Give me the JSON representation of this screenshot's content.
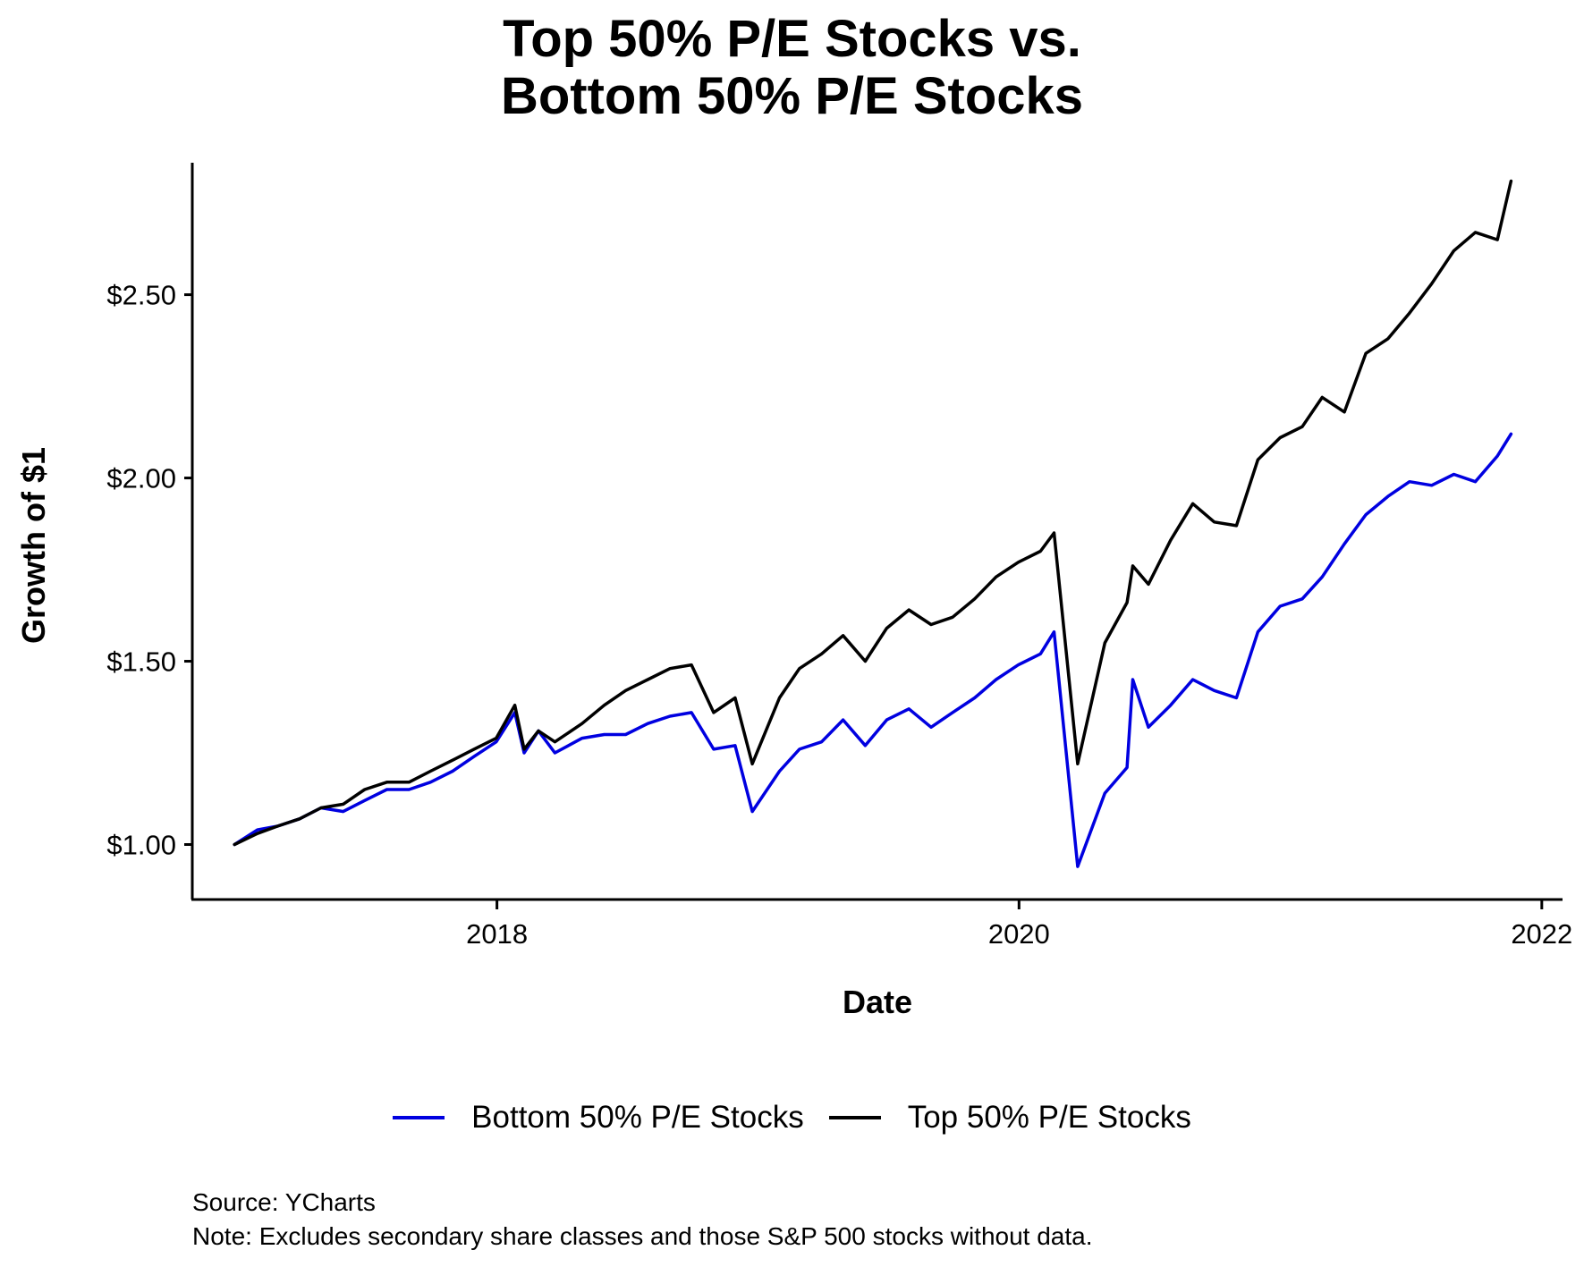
{
  "chart_data": {
    "type": "line",
    "title_lines": [
      "Top 50% P/E Stocks vs.",
      "Bottom 50% P/E Stocks"
    ],
    "xlabel": "Date",
    "ylabel": "Growth of $1",
    "x_ticks": [
      "2018",
      "2020",
      "2022"
    ],
    "y_ticks": [
      "$1.00",
      "$1.50",
      "$2.00",
      "$2.50"
    ],
    "xlim": [
      "2016-11-01",
      "2022-01-30"
    ],
    "ylim": [
      0.85,
      2.86
    ],
    "grid": false,
    "legend_position": "bottom",
    "series": [
      {
        "name": "Bottom 50% P/E Stocks",
        "color": "#0000e0",
        "points": [
          [
            "2016-12-30",
            1.0
          ],
          [
            "2017-01-31",
            1.04
          ],
          [
            "2017-02-28",
            1.05
          ],
          [
            "2017-03-31",
            1.07
          ],
          [
            "2017-04-30",
            1.1
          ],
          [
            "2017-05-31",
            1.09
          ],
          [
            "2017-06-30",
            1.12
          ],
          [
            "2017-07-31",
            1.15
          ],
          [
            "2017-08-31",
            1.15
          ],
          [
            "2017-09-30",
            1.17
          ],
          [
            "2017-10-31",
            1.2
          ],
          [
            "2017-11-30",
            1.24
          ],
          [
            "2017-12-31",
            1.28
          ],
          [
            "2018-01-26",
            1.36
          ],
          [
            "2018-02-08",
            1.25
          ],
          [
            "2018-02-28",
            1.31
          ],
          [
            "2018-03-23",
            1.25
          ],
          [
            "2018-04-30",
            1.29
          ],
          [
            "2018-05-31",
            1.3
          ],
          [
            "2018-06-30",
            1.3
          ],
          [
            "2018-07-31",
            1.33
          ],
          [
            "2018-08-31",
            1.35
          ],
          [
            "2018-09-30",
            1.36
          ],
          [
            "2018-10-31",
            1.26
          ],
          [
            "2018-11-30",
            1.27
          ],
          [
            "2018-12-24",
            1.09
          ],
          [
            "2019-01-31",
            1.2
          ],
          [
            "2019-02-28",
            1.26
          ],
          [
            "2019-03-31",
            1.28
          ],
          [
            "2019-04-30",
            1.34
          ],
          [
            "2019-05-31",
            1.27
          ],
          [
            "2019-06-30",
            1.34
          ],
          [
            "2019-07-31",
            1.37
          ],
          [
            "2019-08-31",
            1.32
          ],
          [
            "2019-09-30",
            1.36
          ],
          [
            "2019-10-31",
            1.4
          ],
          [
            "2019-11-30",
            1.45
          ],
          [
            "2019-12-31",
            1.49
          ],
          [
            "2020-01-31",
            1.52
          ],
          [
            "2020-02-19",
            1.58
          ],
          [
            "2020-03-23",
            0.94
          ],
          [
            "2020-04-30",
            1.14
          ],
          [
            "2020-05-31",
            1.21
          ],
          [
            "2020-06-08",
            1.45
          ],
          [
            "2020-06-30",
            1.32
          ],
          [
            "2020-07-31",
            1.38
          ],
          [
            "2020-08-31",
            1.45
          ],
          [
            "2020-09-30",
            1.42
          ],
          [
            "2020-10-31",
            1.4
          ],
          [
            "2020-11-30",
            1.58
          ],
          [
            "2020-12-31",
            1.65
          ],
          [
            "2021-01-31",
            1.67
          ],
          [
            "2021-02-28",
            1.73
          ],
          [
            "2021-03-31",
            1.82
          ],
          [
            "2021-04-30",
            1.9
          ],
          [
            "2021-05-31",
            1.95
          ],
          [
            "2021-06-30",
            1.99
          ],
          [
            "2021-07-31",
            1.98
          ],
          [
            "2021-08-31",
            2.01
          ],
          [
            "2021-09-30",
            1.99
          ],
          [
            "2021-10-31",
            2.06
          ],
          [
            "2021-11-19",
            2.12
          ]
        ]
      },
      {
        "name": "Top 50% P/E Stocks",
        "color": "#000000",
        "points": [
          [
            "2016-12-30",
            1.0
          ],
          [
            "2017-01-31",
            1.03
          ],
          [
            "2017-02-28",
            1.05
          ],
          [
            "2017-03-31",
            1.07
          ],
          [
            "2017-04-30",
            1.1
          ],
          [
            "2017-05-31",
            1.11
          ],
          [
            "2017-06-30",
            1.15
          ],
          [
            "2017-07-31",
            1.17
          ],
          [
            "2017-08-31",
            1.17
          ],
          [
            "2017-09-30",
            1.2
          ],
          [
            "2017-10-31",
            1.23
          ],
          [
            "2017-11-30",
            1.26
          ],
          [
            "2017-12-31",
            1.29
          ],
          [
            "2018-01-26",
            1.38
          ],
          [
            "2018-02-08",
            1.26
          ],
          [
            "2018-02-28",
            1.31
          ],
          [
            "2018-03-23",
            1.28
          ],
          [
            "2018-04-30",
            1.33
          ],
          [
            "2018-05-31",
            1.38
          ],
          [
            "2018-06-30",
            1.42
          ],
          [
            "2018-07-31",
            1.45
          ],
          [
            "2018-08-31",
            1.48
          ],
          [
            "2018-09-30",
            1.49
          ],
          [
            "2018-10-31",
            1.36
          ],
          [
            "2018-11-30",
            1.4
          ],
          [
            "2018-12-24",
            1.22
          ],
          [
            "2019-01-31",
            1.4
          ],
          [
            "2019-02-28",
            1.48
          ],
          [
            "2019-03-31",
            1.52
          ],
          [
            "2019-04-30",
            1.57
          ],
          [
            "2019-05-31",
            1.5
          ],
          [
            "2019-06-30",
            1.59
          ],
          [
            "2019-07-31",
            1.64
          ],
          [
            "2019-08-31",
            1.6
          ],
          [
            "2019-09-30",
            1.62
          ],
          [
            "2019-10-31",
            1.67
          ],
          [
            "2019-11-30",
            1.73
          ],
          [
            "2019-12-31",
            1.77
          ],
          [
            "2020-01-31",
            1.8
          ],
          [
            "2020-02-19",
            1.85
          ],
          [
            "2020-03-23",
            1.22
          ],
          [
            "2020-04-30",
            1.55
          ],
          [
            "2020-05-31",
            1.66
          ],
          [
            "2020-06-08",
            1.76
          ],
          [
            "2020-06-30",
            1.71
          ],
          [
            "2020-07-31",
            1.83
          ],
          [
            "2020-08-31",
            1.93
          ],
          [
            "2020-09-30",
            1.88
          ],
          [
            "2020-10-31",
            1.87
          ],
          [
            "2020-11-30",
            2.05
          ],
          [
            "2020-12-31",
            2.11
          ],
          [
            "2021-01-31",
            2.14
          ],
          [
            "2021-02-28",
            2.22
          ],
          [
            "2021-03-31",
            2.18
          ],
          [
            "2021-04-30",
            2.34
          ],
          [
            "2021-05-31",
            2.38
          ],
          [
            "2021-06-30",
            2.45
          ],
          [
            "2021-07-31",
            2.53
          ],
          [
            "2021-08-31",
            2.62
          ],
          [
            "2021-09-30",
            2.67
          ],
          [
            "2021-10-31",
            2.65
          ],
          [
            "2021-11-19",
            2.81
          ]
        ]
      }
    ]
  },
  "footer": {
    "source": "Source: YCharts",
    "note": "Note: Excludes secondary share classes and those S&P 500 stocks without data."
  }
}
